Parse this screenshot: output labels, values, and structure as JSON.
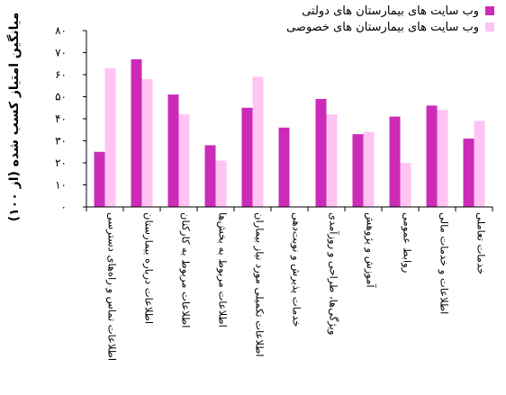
{
  "chart_data": {
    "type": "bar",
    "ylabel": "میانگین امتیاز کسب شده (از ۱۰۰)",
    "ylim": [
      0,
      80
    ],
    "yticks": [
      0,
      10,
      20,
      30,
      40,
      50,
      60,
      70,
      80
    ],
    "ytick_labels": [
      "۰",
      "۱۰",
      "۲۰",
      "۳۰",
      "۴۰",
      "۵۰",
      "۶۰",
      "۷۰",
      "۸۰"
    ],
    "legend_position": "top-right",
    "grid": false,
    "categories": [
      "اطلاعات تماس و راه‌های دسترسی",
      "اطلاعات درباره بیمارستان",
      "اطلاعات مربوط به کارکنان",
      "اطلاعات مربوط به بخش‌ها",
      "اطلاعات تکمیلی مورد نیاز بیماران",
      "خدمات پذیرش و نوبت‌دهی",
      "ویژگی‌ها، طراحی و روزآمدی",
      "آموزش و پژوهش",
      "روابط عمومی",
      "اطلاعات و خدمات مالی",
      "خدمات تعاملی"
    ],
    "series": [
      {
        "name": "وب سایت های بیمارستان های دولتی",
        "color": "#cc2bb8",
        "values": [
          25,
          67,
          51,
          28,
          45,
          36,
          49,
          33,
          41,
          46,
          31
        ]
      },
      {
        "name": "وب سایت های بیمارستان های خصوصی",
        "color": "#ffc4f2",
        "values": [
          63,
          58,
          42,
          21,
          59,
          0,
          42,
          34,
          20,
          44,
          39
        ]
      }
    ]
  }
}
